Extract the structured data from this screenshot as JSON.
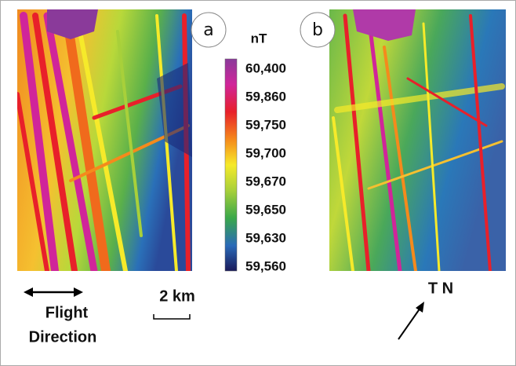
{
  "panels": [
    {
      "label": "a"
    },
    {
      "label": "b"
    }
  ],
  "colorbar": {
    "unit": "nT",
    "labels": [
      "60,400",
      "59,860",
      "59,750",
      "59,700",
      "59,670",
      "59,650",
      "59,630",
      "59,560"
    ]
  },
  "flight_direction": {
    "line1": "Flight",
    "line2": "Direction"
  },
  "scale_bar": {
    "label": "2 km"
  },
  "north_arrow": {
    "label": "T N"
  }
}
